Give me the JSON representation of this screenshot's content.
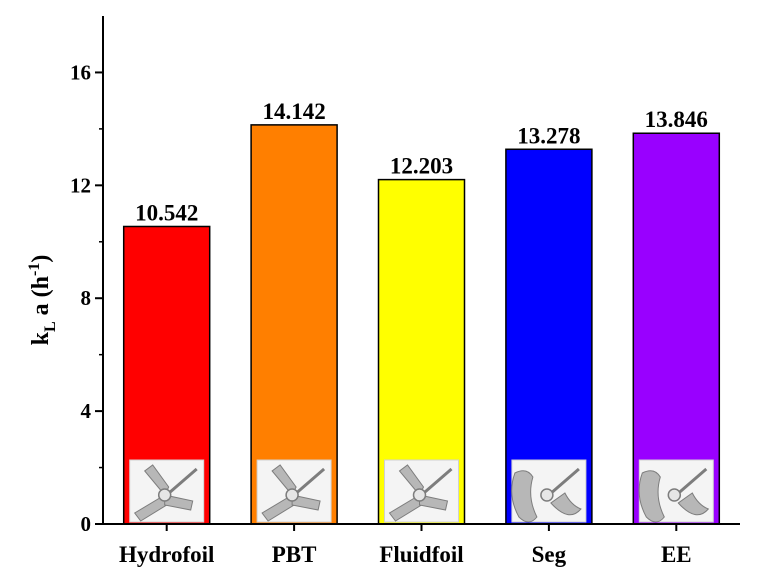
{
  "chart_data": {
    "type": "bar",
    "categories": [
      "Hydrofoil",
      "PBT",
      "Fluidfoil",
      "Seg",
      "EE"
    ],
    "values": [
      10.542,
      14.142,
      12.203,
      13.278,
      13.846
    ],
    "data_labels": [
      "10.542",
      "14.142",
      "12.203",
      "13.278",
      "13.846"
    ],
    "colors": [
      "#ff0000",
      "#ff7f00",
      "#ffff00",
      "#0000ff",
      "#9900ff"
    ],
    "title": "",
    "xlabel": "",
    "ylabel": {
      "base": "k",
      "sub": "L",
      "mid": " a (h",
      "sup": "-1",
      "end": ")"
    },
    "ylim": [
      0,
      18
    ],
    "yticks": [
      0,
      4,
      8,
      12,
      16
    ],
    "ytick_labels": [
      "0",
      "4",
      "8",
      "12",
      "16"
    ],
    "grid": false,
    "legend": "none",
    "bar_insets": [
      "hydrofoil-impeller-icon",
      "pbt-impeller-icon",
      "fluidfoil-impeller-icon",
      "seg-impeller-icon",
      "ee-impeller-icon"
    ]
  }
}
